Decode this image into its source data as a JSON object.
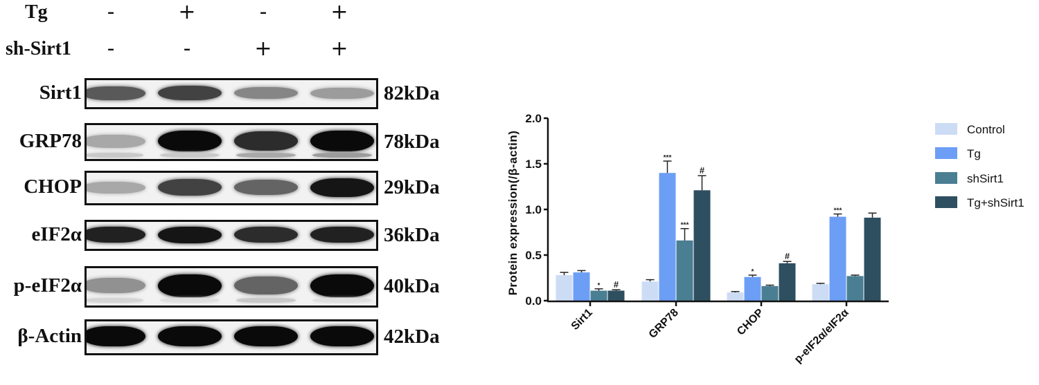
{
  "conditions": {
    "rows": [
      {
        "label": "Tg",
        "signs": [
          "-",
          "+",
          "-",
          "+"
        ]
      },
      {
        "label": "sh-Sirt1",
        "signs": [
          "-",
          "-",
          "+",
          "+"
        ]
      }
    ]
  },
  "blots": [
    {
      "label": "Sirt1",
      "kda": "82kDa",
      "intensity": [
        0.65,
        0.75,
        0.45,
        0.35
      ],
      "lower": [
        0,
        0,
        0,
        0
      ]
    },
    {
      "label": "GRP78",
      "kda": "78kDa",
      "intensity": [
        0.3,
        1.0,
        0.85,
        1.0
      ],
      "lower": [
        0.15,
        0.15,
        0.3,
        0.35
      ]
    },
    {
      "label": "CHOP",
      "kda": "29kDa",
      "intensity": [
        0.3,
        0.75,
        0.6,
        0.95
      ],
      "lower": [
        0,
        0,
        0,
        0
      ]
    },
    {
      "label": "eIF2α",
      "kda": "36kDa",
      "intensity": [
        0.9,
        0.95,
        0.85,
        0.9
      ],
      "lower": [
        0,
        0,
        0,
        0
      ]
    },
    {
      "label": "p-eIF2α",
      "kda": "40kDa",
      "intensity": [
        0.4,
        1.0,
        0.6,
        1.0
      ],
      "lower": [
        0.1,
        0.05,
        0.15,
        0.05
      ]
    },
    {
      "label": "β-Actin",
      "kda": "42kDa",
      "intensity": [
        1.0,
        1.0,
        1.0,
        1.0
      ],
      "lower": [
        0,
        0,
        0,
        0
      ]
    }
  ],
  "chart_data": {
    "type": "bar",
    "title": "",
    "xlabel": "",
    "ylabel": "Protein expression(/β-actin)",
    "ylim": [
      0,
      2.0
    ],
    "yticks": [
      "0.0",
      "0.5",
      "1.0",
      "1.5",
      "2.0"
    ],
    "categories": [
      "Sirt1",
      "GRP78",
      "CHOP",
      "p-eIF2α/eIF2α"
    ],
    "series": [
      {
        "name": "Control",
        "color": "#cddcf5",
        "values": [
          0.28,
          0.21,
          0.09,
          0.18
        ],
        "errors": [
          0.03,
          0.02,
          0.01,
          0.01
        ],
        "annotations": [
          "",
          "",
          "",
          ""
        ]
      },
      {
        "name": "Tg",
        "color": "#6d9ef5",
        "values": [
          0.31,
          1.4,
          0.26,
          0.92
        ],
        "errors": [
          0.02,
          0.13,
          0.02,
          0.03
        ],
        "annotations": [
          "",
          "***",
          "*",
          "***"
        ]
      },
      {
        "name": "shSirt1",
        "color": "#4a7e93",
        "values": [
          0.11,
          0.66,
          0.16,
          0.27
        ],
        "errors": [
          0.02,
          0.13,
          0.01,
          0.01
        ],
        "annotations": [
          "*",
          "***",
          "",
          ""
        ]
      },
      {
        "name": "Tg+shSirt1",
        "color": "#2e4f60",
        "values": [
          0.11,
          1.21,
          0.41,
          0.91
        ],
        "errors": [
          0.01,
          0.16,
          0.02,
          0.05
        ],
        "annotations": [
          "#",
          "#",
          "#",
          ""
        ]
      }
    ],
    "grid": false,
    "legend_position": "right"
  }
}
